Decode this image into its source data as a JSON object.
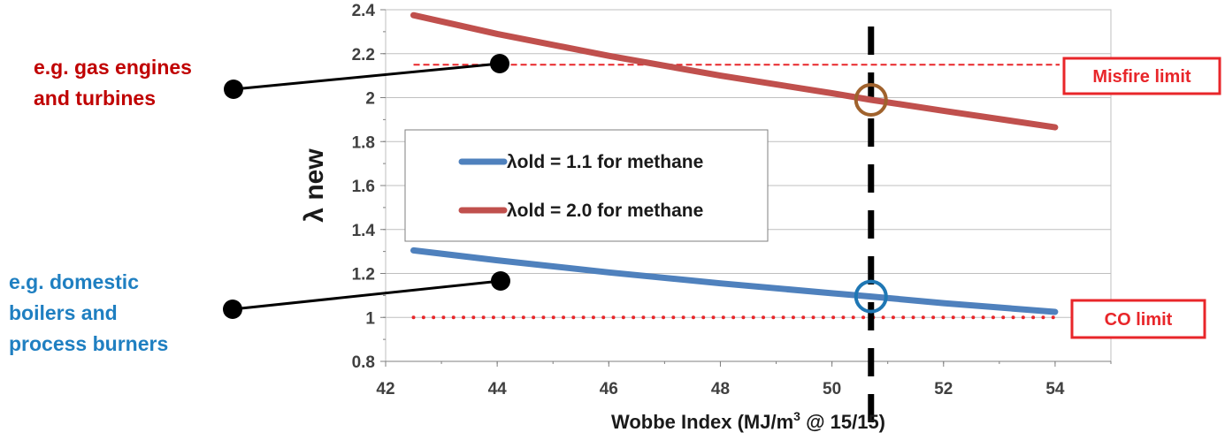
{
  "chart_data": {
    "type": "line",
    "xlabel_main": "Wobbe Index (MJ/m",
    "xlabel_sup": "3",
    "xlabel_tail": " @ 15/15)",
    "ylabel": "λ new",
    "xlim": [
      42,
      55
    ],
    "ylim": [
      0.8,
      2.4
    ],
    "x_ticks": [
      42,
      44,
      46,
      48,
      50,
      52,
      54
    ],
    "y_ticks": [
      0.8,
      1,
      1.2,
      1.4,
      1.6,
      1.8,
      2,
      2.2,
      2.4
    ],
    "y_tick_labels": [
      "0.8",
      "1",
      "1.2",
      "1.4",
      "1.6",
      "1.8",
      "2",
      "2.2",
      "2.4"
    ],
    "grid": "horizontal",
    "legend_position": "center-left",
    "series": [
      {
        "name": "λold = 1.1 for methane",
        "color": "#4f81bd",
        "x": [
          42.5,
          44,
          46,
          48,
          50,
          50.7,
          52,
          54
        ],
        "y": [
          1.305,
          1.26,
          1.205,
          1.155,
          1.11,
          1.095,
          1.065,
          1.025
        ]
      },
      {
        "name": "λold = 2.0 for methane",
        "color": "#c0504d",
        "x": [
          42.5,
          44,
          46,
          48,
          50,
          50.7,
          52,
          54
        ],
        "y": [
          2.375,
          2.29,
          2.19,
          2.1,
          2.02,
          1.99,
          1.94,
          1.865
        ]
      }
    ],
    "reference_lines": {
      "misfire_y": 2.15,
      "co_y": 1.0,
      "wobbe_x": 50.7
    },
    "markers": [
      {
        "x": 50.7,
        "y": 1.99,
        "color": "#a0622d"
      },
      {
        "x": 50.7,
        "y": 1.095,
        "color": "#1f77b4"
      }
    ],
    "annotations": {
      "misfire_label": "Misfire limit",
      "co_label": "CO limit",
      "gas_engines_line1": "e.g. gas engines",
      "gas_engines_line2": "and turbines",
      "domestic_line1": "e.g. domestic",
      "domestic_line2": "boilers and",
      "domestic_line3": "process burners"
    },
    "colors": {
      "red_text": "#c00000",
      "blue_text": "#1f7fc1",
      "limit_line": "#e8262a",
      "box_border": "#e8262a"
    }
  }
}
